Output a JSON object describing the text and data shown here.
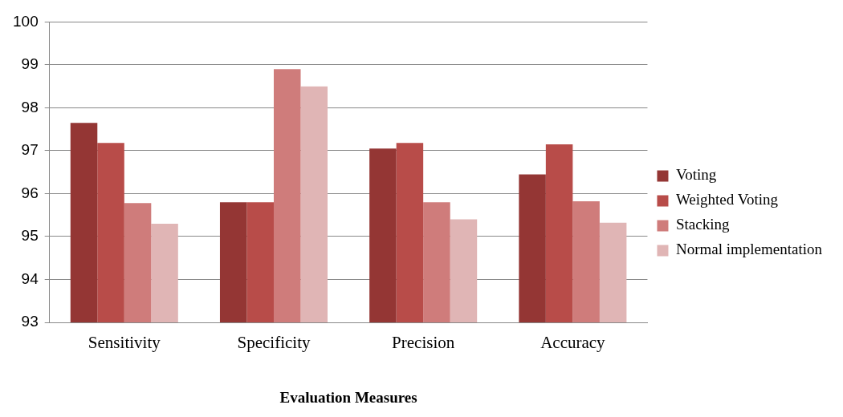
{
  "chart_data": {
    "type": "bar",
    "xlabel": "Evaluation Measures",
    "categories": [
      "Sensitivity",
      "Specificity",
      "Precision",
      "Accuracy"
    ],
    "series": [
      {
        "name": "Voting",
        "color": "#943634",
        "values": [
          97.65,
          95.8,
          97.05,
          96.45
        ]
      },
      {
        "name": "Weighted Voting",
        "color": "#b84c49",
        "values": [
          97.18,
          95.8,
          97.18,
          97.15
        ]
      },
      {
        "name": "Stacking",
        "color": "#cf7c7b",
        "values": [
          95.78,
          98.9,
          95.8,
          95.82
        ]
      },
      {
        "name": "Normal implementation",
        "color": "#e0b5b5",
        "values": [
          95.3,
          98.5,
          95.4,
          95.32
        ]
      }
    ],
    "ylim": [
      93,
      100
    ],
    "yticks": [
      93,
      94,
      95,
      96,
      97,
      98,
      99,
      100
    ],
    "grid": "y",
    "legend": "right"
  }
}
